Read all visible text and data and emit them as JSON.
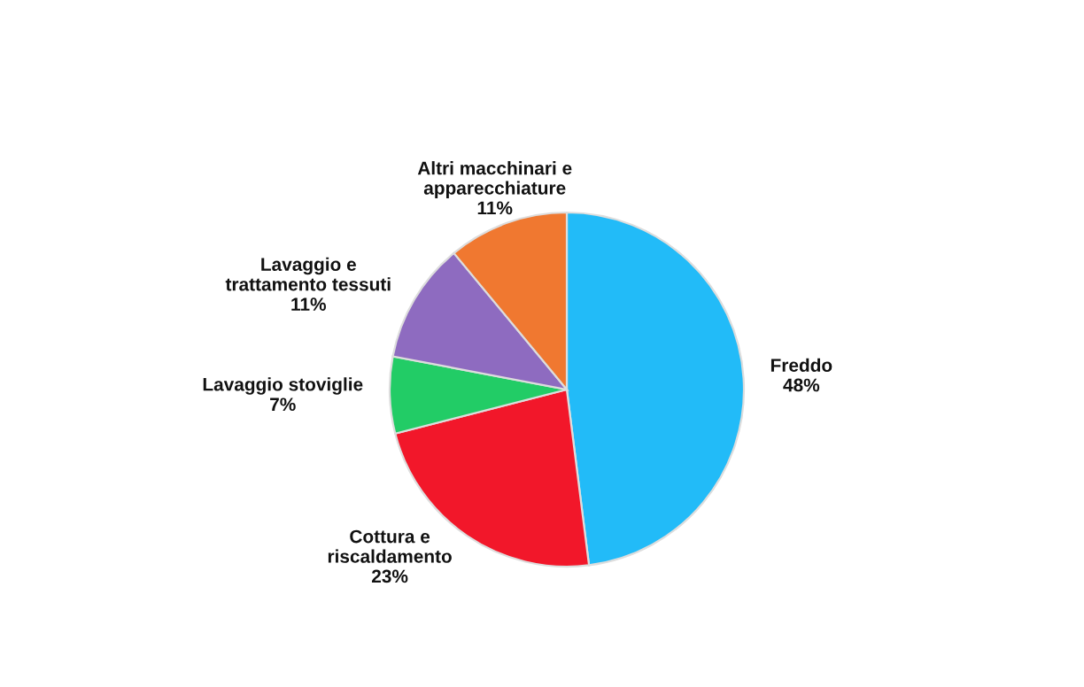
{
  "chart_data": {
    "type": "pie",
    "categories": [
      "Freddo",
      "Cottura e\nriscaldamento",
      "Lavaggio stoviglie",
      "Lavaggio e\ntrattamento tessuti",
      "Altri macchinari e\napparecchiature"
    ],
    "values": [
      48,
      23,
      7,
      11,
      11
    ],
    "value_labels": [
      "48%",
      "23%",
      "7%",
      "11%",
      "11%"
    ],
    "colors": [
      "#22bbf8",
      "#f2172a",
      "#22cc66",
      "#8e6bc0",
      "#f07830"
    ]
  }
}
